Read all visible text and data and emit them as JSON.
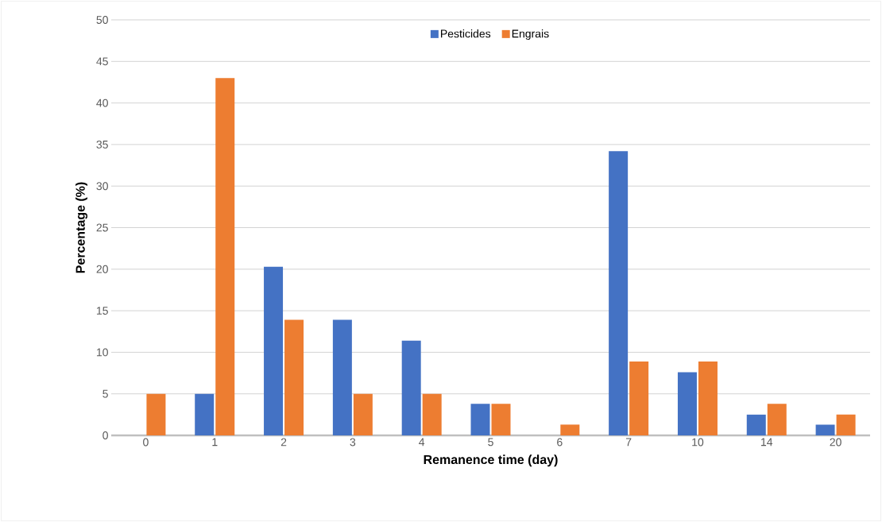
{
  "chart_data": {
    "type": "bar",
    "xlabel": "Remanence time (day)",
    "ylabel": "Percentage (%)",
    "categories": [
      "0",
      "1",
      "2",
      "3",
      "4",
      "5",
      "6",
      "7",
      "10",
      "14",
      "20"
    ],
    "series": [
      {
        "name": "Pesticides",
        "color": "#4472c4",
        "values": [
          0,
          5.0,
          20.3,
          13.9,
          11.4,
          3.8,
          0,
          34.2,
          7.6,
          2.5,
          1.3
        ]
      },
      {
        "name": "Engrais",
        "color": "#ed7d31",
        "values": [
          5.0,
          43.0,
          13.9,
          5.0,
          5.0,
          3.8,
          1.3,
          8.9,
          8.9,
          3.8,
          2.5
        ]
      }
    ],
    "ylim": [
      0,
      50
    ],
    "yticks": [
      0,
      5,
      10,
      15,
      20,
      25,
      30,
      35,
      40,
      45,
      50
    ],
    "grid": "y",
    "legend": "top"
  }
}
